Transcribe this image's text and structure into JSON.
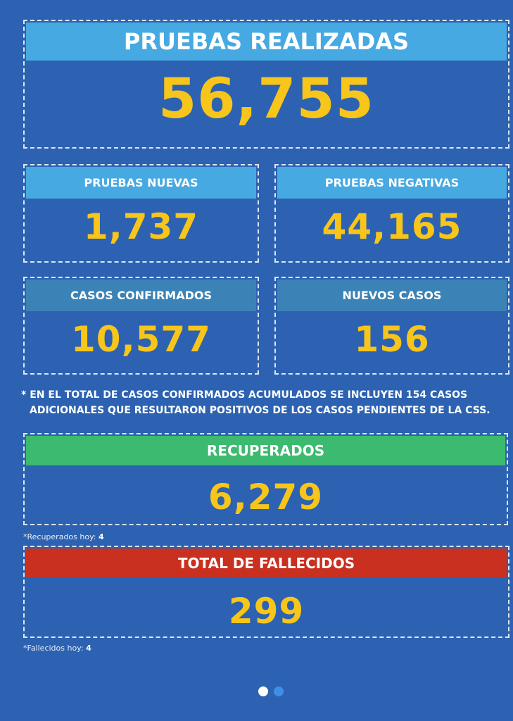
{
  "main": {
    "title": "PRUEBAS REALIZADAS",
    "value": "56,755"
  },
  "cards": [
    {
      "title": "PRUEBAS NUEVAS",
      "value": "1,737"
    },
    {
      "title": "PRUEBAS NEGATIVAS",
      "value": "44,165"
    },
    {
      "title": "CASOS CONFIRMADOS",
      "value": "10,577"
    },
    {
      "title": "NUEVOS CASOS",
      "value": "156"
    }
  ],
  "note": [
    "* EN EL TOTAL DE CASOS CONFIRMADOS ACUMULADOS SE INCLUYEN 154 CASOS",
    "ADICIONALES QUE RESULTARON POSITIVOS DE LOS CASOS PENDIENTES DE LA CSS."
  ],
  "recovered": {
    "title": "RECUPERADOS",
    "value": "6,279",
    "today_label": "*Recuperados hoy:",
    "today_value": "4"
  },
  "deaths": {
    "title": "TOTAL DE FALLECIDOS",
    "value": "299",
    "today_label": "*Fallecidos hoy:",
    "today_value": "4"
  }
}
